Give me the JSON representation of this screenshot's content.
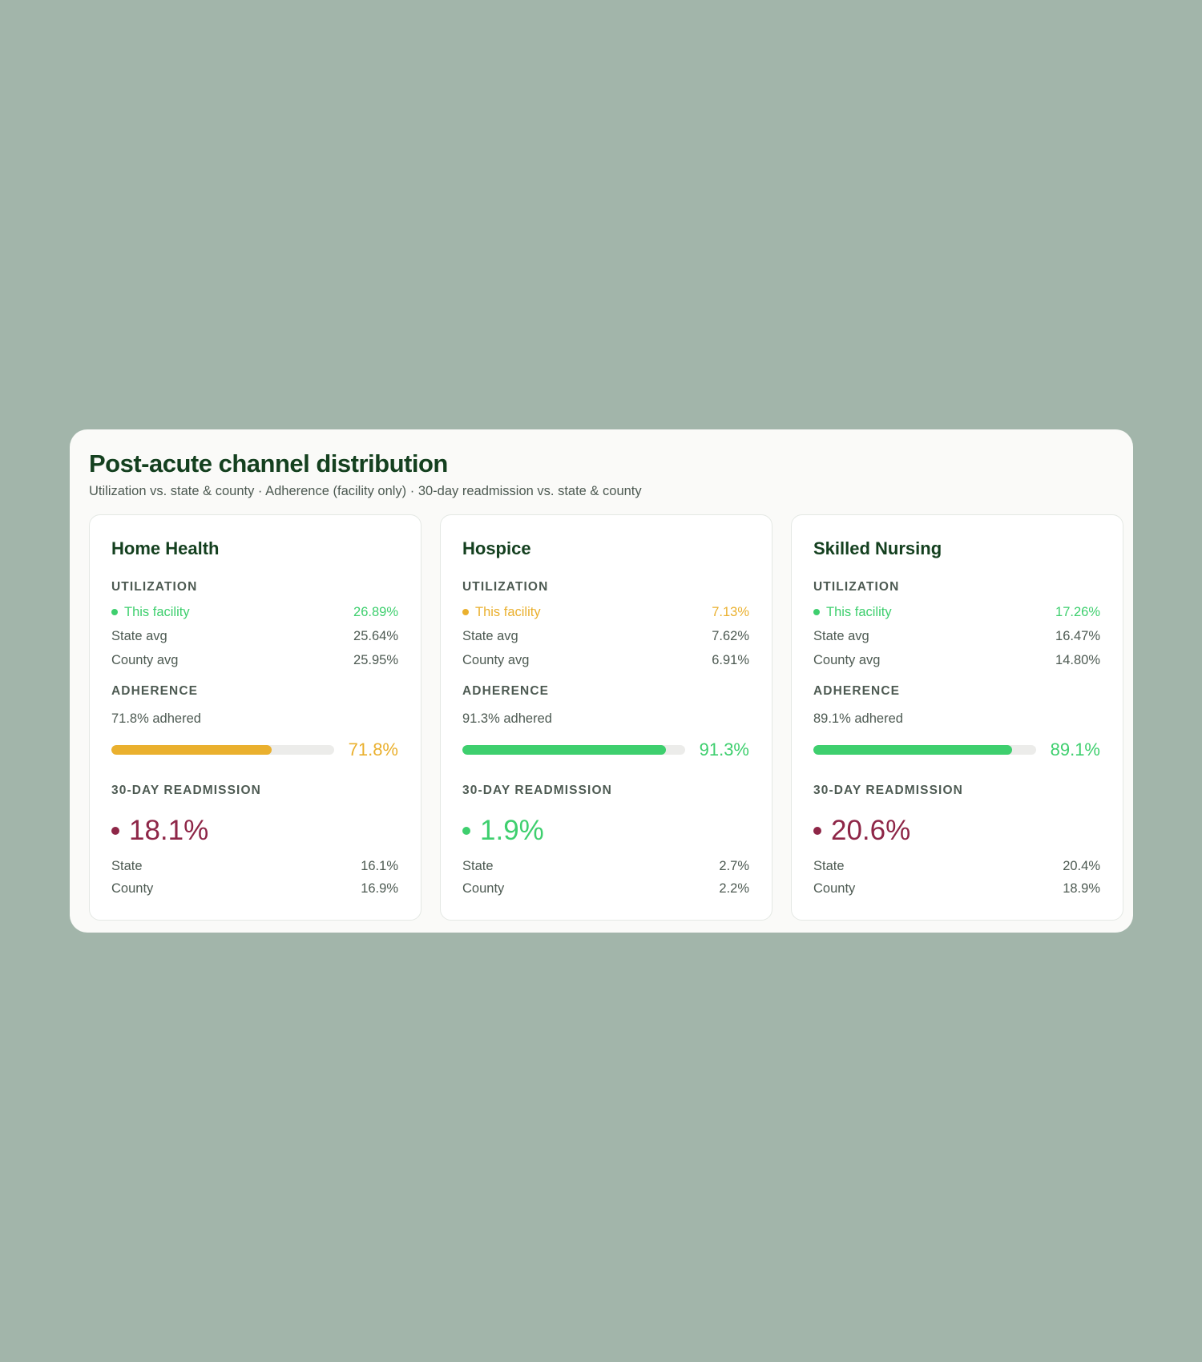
{
  "title": "Post-acute channel distribution",
  "subtitle": "Utilization vs. state & county · Adherence (facility only) · 30-day readmission vs. state & county",
  "labels": {
    "utilization": "UTILIZATION",
    "adherence": "ADHERENCE",
    "readmission": "30-DAY READMISSION",
    "this_facility": "This facility",
    "state_avg": "State avg",
    "county_avg": "County avg",
    "state": "State",
    "county": "County"
  },
  "colors": {
    "green": "#3ecf6e",
    "amber": "#eab02e",
    "maroon": "#8e2647",
    "track": "#ececea"
  },
  "cards": [
    {
      "name": "Home Health",
      "utilization": {
        "facility": "26.89%",
        "facility_color": "#3ecf6e",
        "state": "25.64%",
        "county": "25.95%"
      },
      "adherence": {
        "text": "71.8% adhered",
        "value": "71.8%",
        "fraction": 0.718,
        "color": "#eab02e"
      },
      "readmission": {
        "value": "18.1%",
        "color": "#8e2647",
        "state": "16.1%",
        "county": "16.9%"
      }
    },
    {
      "name": "Hospice",
      "utilization": {
        "facility": "7.13%",
        "facility_color": "#eab02e",
        "state": "7.62%",
        "county": "6.91%"
      },
      "adherence": {
        "text": "91.3% adhered",
        "value": "91.3%",
        "fraction": 0.913,
        "color": "#3ecf6e"
      },
      "readmission": {
        "value": "1.9%",
        "color": "#3ecf6e",
        "state": "2.7%",
        "county": "2.2%"
      }
    },
    {
      "name": "Skilled Nursing",
      "utilization": {
        "facility": "17.26%",
        "facility_color": "#3ecf6e",
        "state": "16.47%",
        "county": "14.80%"
      },
      "adherence": {
        "text": "89.1% adhered",
        "value": "89.1%",
        "fraction": 0.891,
        "color": "#3ecf6e"
      },
      "readmission": {
        "value": "20.6%",
        "color": "#8e2647",
        "state": "20.4%",
        "county": "18.9%"
      }
    }
  ]
}
